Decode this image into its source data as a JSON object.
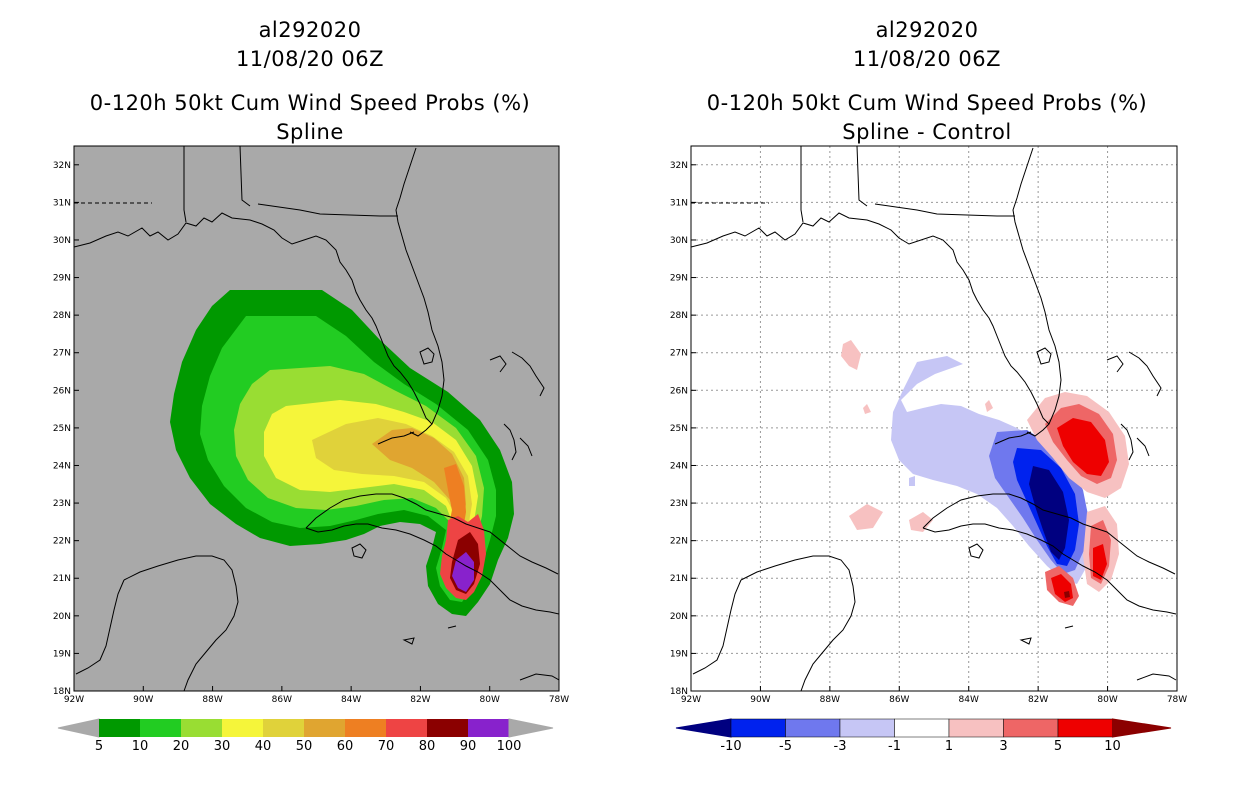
{
  "chart_data": [
    {
      "type": "heatmap",
      "storm_id": "al292020",
      "datetime": "11/08/20 06Z",
      "title": "0-120h 50kt Cum Wind Speed Probs (%)",
      "subtitle": "Spline",
      "x_ticks": [
        "92W",
        "90W",
        "88W",
        "86W",
        "84W",
        "82W",
        "80W",
        "78W"
      ],
      "y_ticks": [
        "18N",
        "19N",
        "20N",
        "21N",
        "22N",
        "23N",
        "24N",
        "25N",
        "26N",
        "27N",
        "28N",
        "29N",
        "30N",
        "31N",
        "32N"
      ],
      "x_range": [
        -92,
        -78
      ],
      "y_range": [
        18,
        32.5
      ],
      "legend_labels": [
        "5",
        "10",
        "20",
        "30",
        "40",
        "50",
        "60",
        "70",
        "80",
        "90",
        "100"
      ],
      "legend_colors": [
        "#009900",
        "#22cc22",
        "#99dd33",
        "#f5f53a",
        "#e0d23a",
        "#e0a530",
        "#ee7f22",
        "#ee4444",
        "#8b0000",
        "#8822cc"
      ],
      "background_color": "#a9a9a9"
    },
    {
      "type": "heatmap",
      "storm_id": "al292020",
      "datetime": "11/08/20 06Z",
      "title": "0-120h 50kt Cum Wind Speed Probs (%)",
      "subtitle": "Spline - Control",
      "x_ticks": [
        "92W",
        "90W",
        "88W",
        "86W",
        "84W",
        "82W",
        "80W",
        "78W"
      ],
      "y_ticks": [
        "18N",
        "19N",
        "20N",
        "21N",
        "22N",
        "23N",
        "24N",
        "25N",
        "26N",
        "27N",
        "28N",
        "29N",
        "30N",
        "31N",
        "32N"
      ],
      "x_range": [
        -92,
        -78
      ],
      "y_range": [
        18,
        32.5
      ],
      "legend_labels": [
        "-10",
        "-5",
        "-3",
        "-1",
        "1",
        "3",
        "5",
        "10"
      ],
      "legend_colors": [
        "#000080",
        "#0022ee",
        "#6f78ee",
        "#c6c6f5",
        "#ffffff",
        "#f7c1c1",
        "#ee6666",
        "#ee0000",
        "#8b0000"
      ],
      "background_color": "#ffffff"
    }
  ]
}
